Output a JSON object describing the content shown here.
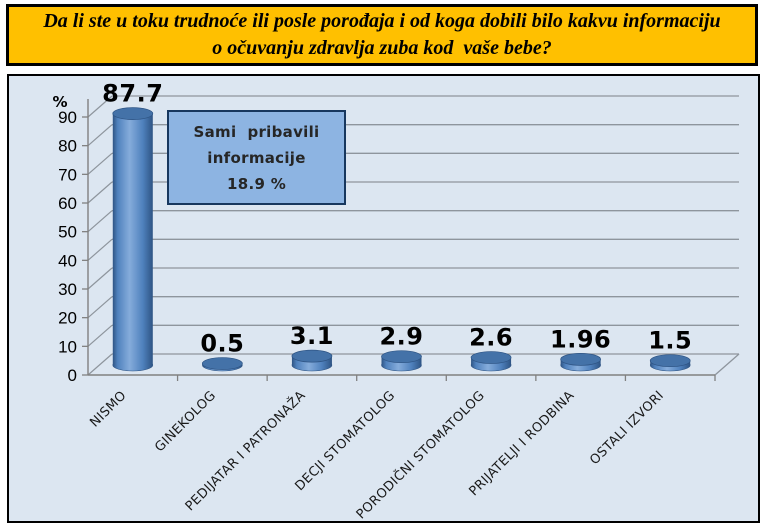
{
  "title": {
    "line1": "Da li ste u toku trudnoće ili posle porođaja i od koga dobili bilo kakvu informaciju",
    "line2": "o očuvanju zdravlja zuba kod  vaše bebe?",
    "bg_color": "#FFC000",
    "border_color": "#000000"
  },
  "chart_data": {
    "type": "bar",
    "style": "3d-cylinder",
    "categories": [
      "NISMO",
      "GINEKOLOG",
      "PEDIJATAR I PATRONAŽA",
      "DECJI STOMATOLOG",
      "PORODIČNI STOMATOLOG",
      "PRIJATELJI I RODBINA",
      "OSTALI IZVORI"
    ],
    "values": [
      87.7,
      0.5,
      3.1,
      2.9,
      2.6,
      1.96,
      1.5
    ],
    "value_labels": [
      "87.7",
      "0.5",
      "3.1",
      "2.9",
      "2.6",
      "1.96",
      "1.5"
    ],
    "ylabel": "%",
    "ylim": [
      0,
      90
    ],
    "ytick_step": 10,
    "yticks": [
      0,
      10,
      20,
      30,
      40,
      50,
      60,
      70,
      80,
      90
    ],
    "grid": true,
    "legend": "none",
    "plot_bg": "#DCE6F1",
    "bar_color": "#4F81BD",
    "bar_color_dark": "#2E5484",
    "bar_color_light": "#85ACDB",
    "bar_top_color": "#4472A8",
    "gridline_color": "#8E959D",
    "axis_color": "#808080",
    "tick_label_color": "#1A1A1A",
    "value_label_color": "#000000"
  },
  "annotation": {
    "line1": "Sami  pribavili",
    "line2": "informacije",
    "line3": "18.9 %",
    "bg_color": "#8DB4E2",
    "border_color": "#17375E",
    "text_color": "#262626"
  }
}
